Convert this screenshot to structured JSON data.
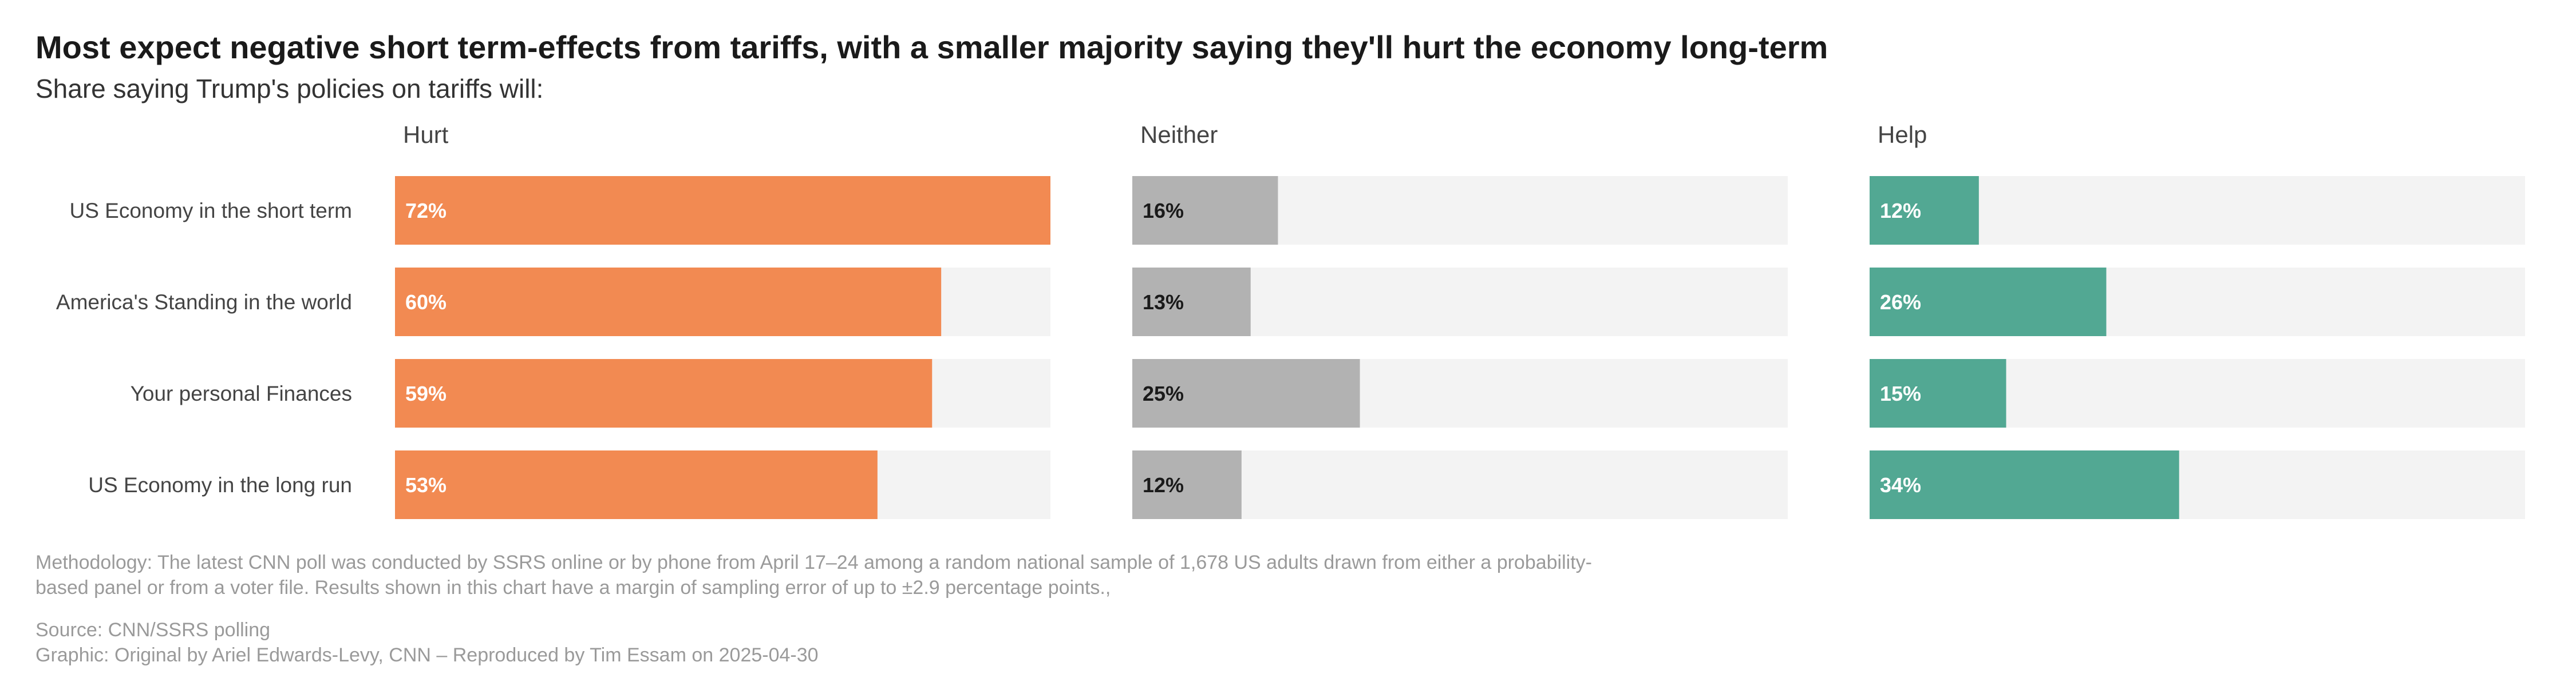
{
  "title": "Most expect negative short term-effects from tariffs, with a smaller majority saying they'll hurt the economy long-term",
  "subtitle": "Share saying Trump's policies on tariffs will:",
  "chart_data": {
    "type": "bar",
    "orientation": "horizontal",
    "layout": "small-multiples",
    "categories": [
      "US Economy in the short term",
      "America's Standing in the world",
      "Your personal Finances",
      "US Economy in the long run"
    ],
    "series": [
      {
        "name": "Hurt",
        "values": [
          72,
          60,
          59,
          53
        ],
        "color": "#F28A52",
        "label_color": "#ffffff"
      },
      {
        "name": "Neither",
        "values": [
          16,
          13,
          25,
          12
        ],
        "color": "#B2B2B2",
        "label_color": "#1a1a1a"
      },
      {
        "name": "Help",
        "values": [
          12,
          26,
          15,
          34
        ],
        "color": "#52A893",
        "label_color": "#ffffff"
      }
    ],
    "value_suffix": "%",
    "xlim": [
      0,
      72
    ],
    "track_color": "#F3F3F3",
    "grid": false,
    "legend": "none"
  },
  "notes": {
    "methodology": "Methodology: The latest CNN poll was conducted by SSRS online or by phone from April 17–24 among a random national sample of 1,678 US adults drawn from either a probability-based panel or from a voter file. Results shown in this chart have a margin of sampling error of up to ±2.9 percentage points.,",
    "source": "Source: CNN/SSRS polling",
    "graphic": "Graphic: Original by Ariel Edwards-Levy, CNN – Reproduced by Tim Essam on 2025-04-30"
  }
}
